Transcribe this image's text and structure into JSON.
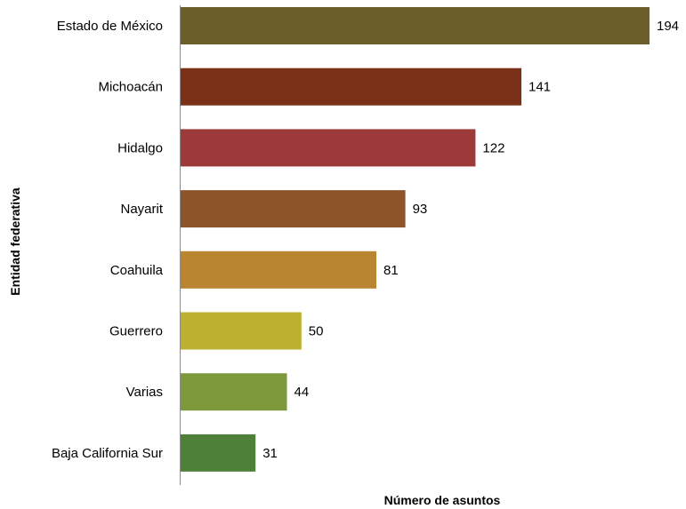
{
  "chart_data": {
    "type": "bar",
    "orientation": "horizontal",
    "categories": [
      "Estado de México",
      "Michoacán",
      "Hidalgo",
      "Nayarit",
      "Coahuila",
      "Guerrero",
      "Varias",
      "Baja California Sur"
    ],
    "values": [
      194,
      141,
      122,
      93,
      81,
      50,
      44,
      31
    ],
    "colors": [
      "#6b5e2b",
      "#7a3118",
      "#9c3a3a",
      "#8e5429",
      "#ba8530",
      "#bcb030",
      "#7e993c",
      "#4f803a"
    ],
    "data_labels": [
      "194",
      "141",
      "122",
      "93",
      "81",
      "50",
      "44",
      "31"
    ],
    "xlabel": "Número de asuntos",
    "ylabel": "Entidad federativa",
    "xlim": [
      0,
      194
    ],
    "grid": false,
    "legend": "none"
  }
}
